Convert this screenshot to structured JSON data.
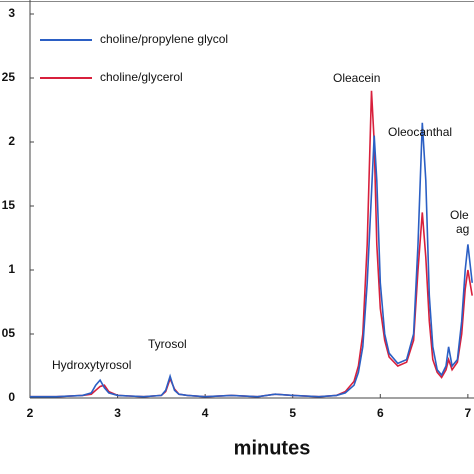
{
  "chart_data": {
    "type": "line",
    "xlabel": "minutes",
    "x": [
      2,
      2.3,
      2.6,
      2.7,
      2.75,
      2.8,
      2.85,
      2.9,
      3.0,
      3.3,
      3.5,
      3.55,
      3.6,
      3.65,
      3.7,
      3.8,
      4.0,
      4.3,
      4.6,
      4.8,
      5.0,
      5.3,
      5.5,
      5.6,
      5.7,
      5.75,
      5.8,
      5.85,
      5.9,
      5.93,
      5.96,
      6.0,
      6.05,
      6.1,
      6.2,
      6.3,
      6.38,
      6.43,
      6.48,
      6.52,
      6.56,
      6.6,
      6.65,
      6.7,
      6.75,
      6.78,
      6.82,
      6.88,
      6.93,
      6.97,
      7.0,
      7.05
    ],
    "series": [
      {
        "name": "choline/propylene glycol",
        "color": "#2b5fc4",
        "values": [
          0.001,
          0.001,
          0.002,
          0.004,
          0.01,
          0.014,
          0.008,
          0.004,
          0.002,
          0.001,
          0.002,
          0.006,
          0.017,
          0.006,
          0.003,
          0.002,
          0.001,
          0.002,
          0.001,
          0.003,
          0.002,
          0.001,
          0.002,
          0.004,
          0.01,
          0.02,
          0.04,
          0.09,
          0.16,
          0.205,
          0.17,
          0.09,
          0.05,
          0.035,
          0.027,
          0.03,
          0.05,
          0.12,
          0.215,
          0.17,
          0.08,
          0.04,
          0.022,
          0.018,
          0.025,
          0.04,
          0.025,
          0.03,
          0.06,
          0.1,
          0.12,
          0.09
        ]
      },
      {
        "name": "choline/glycerol",
        "color": "#d8203c",
        "values": [
          0.001,
          0.001,
          0.002,
          0.003,
          0.006,
          0.009,
          0.01,
          0.005,
          0.002,
          0.001,
          0.002,
          0.005,
          0.015,
          0.007,
          0.003,
          0.002,
          0.001,
          0.002,
          0.001,
          0.003,
          0.002,
          0.001,
          0.002,
          0.005,
          0.013,
          0.025,
          0.05,
          0.12,
          0.24,
          0.2,
          0.12,
          0.07,
          0.045,
          0.032,
          0.025,
          0.028,
          0.045,
          0.1,
          0.145,
          0.11,
          0.06,
          0.03,
          0.02,
          0.016,
          0.022,
          0.03,
          0.022,
          0.028,
          0.05,
          0.085,
          0.1,
          0.08
        ]
      }
    ],
    "xlim": [
      2,
      7.07
    ],
    "xticks": [
      2,
      3,
      4,
      5,
      6,
      7
    ],
    "ylim": [
      0,
      0.31
    ],
    "yticks": [
      0,
      {
        "value": 0.05,
        "label": "05"
      },
      {
        "value": 0.1,
        "label": "1"
      },
      {
        "value": 0.15,
        "label": "15"
      },
      {
        "value": 0.2,
        "label": "2"
      },
      {
        "value": 0.25,
        "label": "25"
      },
      {
        "value": 0.3,
        "label": "3"
      }
    ],
    "annotations": [
      "Hydroxytyrosol",
      "Tyrosol",
      "Oleacein",
      "Oleocanthal",
      "Ole",
      "ag"
    ]
  }
}
